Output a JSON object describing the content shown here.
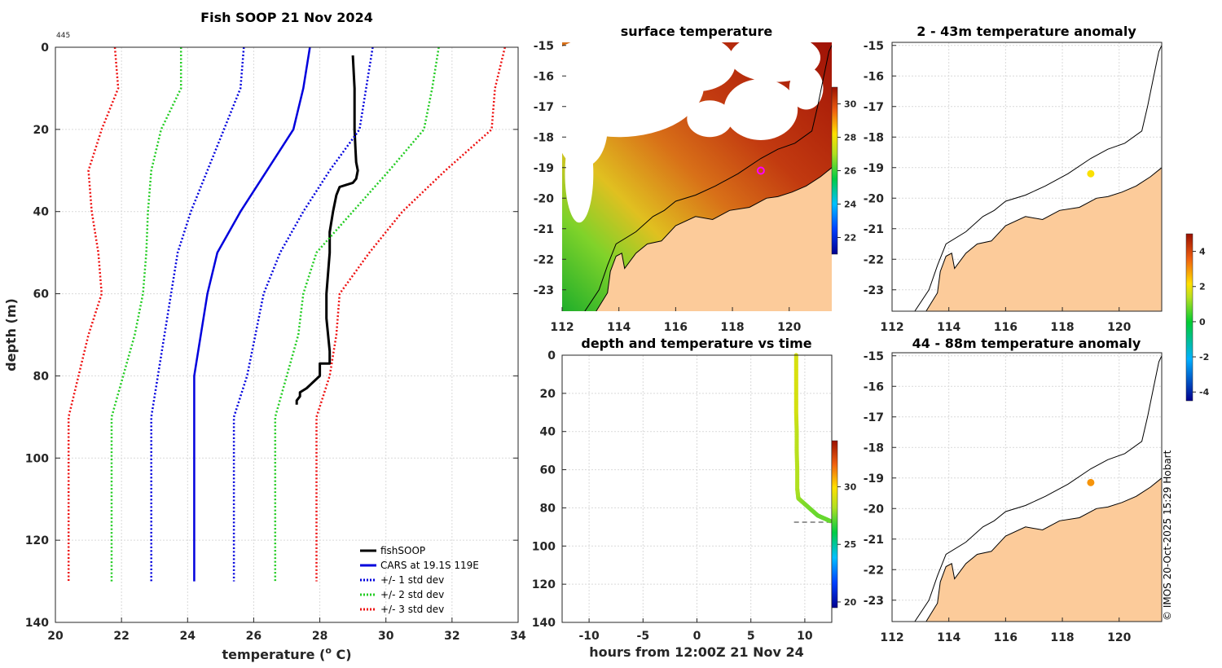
{
  "chart_data": [
    {
      "type": "line",
      "id": "profile",
      "title": "Fish SOOP 21 Nov 2024",
      "corner_label": "445",
      "xlabel": "temperature (",
      "xlabel_sup": "o",
      "xlabel_end": " C)",
      "ylabel": "depth (m)",
      "xlim": [
        20,
        34
      ],
      "ylim": [
        0,
        140
      ],
      "xticks": [
        20,
        22,
        24,
        26,
        28,
        30,
        32,
        34
      ],
      "yticks": [
        0,
        20,
        40,
        60,
        80,
        100,
        120,
        140
      ],
      "legend": [
        "fishSOOP",
        "CARS at 19.1S 119E",
        "+/- 1 std dev",
        "+/- 2 std dev",
        "+/- 3 std dev"
      ],
      "series": [
        {
          "name": "fishSOOP",
          "color": "#000000",
          "style": "solid",
          "x": [
            29.0,
            29.05,
            29.05,
            29.08,
            29.1,
            29.15,
            29.1,
            29.0,
            28.8,
            28.6,
            28.5,
            28.4,
            28.3,
            28.3,
            28.25,
            28.2,
            28.2,
            28.25,
            28.3,
            28.3,
            28.0,
            28.0,
            27.6,
            27.4,
            27.4,
            27.3,
            27.3
          ],
          "y": [
            2,
            10,
            20,
            25,
            28,
            30,
            32,
            33,
            33.5,
            34,
            36,
            40,
            45,
            50,
            55,
            60,
            66,
            70,
            74,
            77,
            77,
            80,
            83,
            84,
            85,
            86,
            87
          ]
        },
        {
          "name": "CARS at 19.1S 119E",
          "color": "#0000dd",
          "style": "solid",
          "x": [
            27.7,
            27.5,
            27.2,
            26.4,
            25.6,
            24.9,
            24.6,
            24.4,
            24.2,
            24.2,
            24.2
          ],
          "y": [
            0,
            10,
            20,
            30,
            40,
            50,
            60,
            70,
            80,
            90,
            130
          ]
        },
        {
          "name": "+1 std dev",
          "color": "#0000dd",
          "style": "dotted",
          "x": [
            29.6,
            29.4,
            29.2,
            28.3,
            27.5,
            26.8,
            26.3,
            26.05,
            25.8,
            25.4,
            25.4
          ],
          "y": [
            0,
            10,
            20,
            30,
            40,
            50,
            60,
            70,
            80,
            90,
            130
          ]
        },
        {
          "name": "-1 std dev",
          "color": "#0000dd",
          "style": "dotted",
          "x": [
            25.7,
            25.6,
            25.1,
            24.6,
            24.1,
            23.7,
            23.5,
            23.3,
            23.1,
            22.9,
            22.9
          ],
          "y": [
            0,
            10,
            20,
            30,
            40,
            50,
            60,
            70,
            80,
            90,
            130
          ]
        },
        {
          "name": "+2 std dev",
          "color": "#22cc22",
          "style": "dotted",
          "x": [
            31.6,
            31.4,
            31.15,
            30.1,
            29.0,
            27.9,
            27.5,
            27.35,
            27.0,
            26.65,
            26.65
          ],
          "y": [
            0,
            10,
            20,
            30,
            40,
            50,
            60,
            70,
            80,
            90,
            130
          ]
        },
        {
          "name": "-2 std dev",
          "color": "#22cc22",
          "style": "dotted",
          "x": [
            23.8,
            23.8,
            23.2,
            22.9,
            22.8,
            22.75,
            22.65,
            22.4,
            22.05,
            21.7,
            21.7
          ],
          "y": [
            0,
            10,
            20,
            30,
            40,
            50,
            60,
            70,
            80,
            90,
            130
          ]
        },
        {
          "name": "+3 std dev",
          "color": "#ee1111",
          "style": "dotted",
          "x": [
            33.6,
            33.3,
            33.2,
            31.8,
            30.5,
            29.5,
            28.6,
            28.5,
            28.3,
            27.9,
            27.9
          ],
          "y": [
            0,
            10,
            20,
            30,
            40,
            50,
            60,
            70,
            80,
            90,
            130
          ]
        },
        {
          "name": "-3 std dev",
          "color": "#ee1111",
          "style": "dotted",
          "x": [
            21.8,
            21.9,
            21.4,
            21.0,
            21.1,
            21.3,
            21.4,
            21.0,
            20.7,
            20.4,
            20.4
          ],
          "y": [
            0,
            10,
            20,
            30,
            40,
            50,
            60,
            70,
            80,
            90,
            130
          ]
        }
      ]
    },
    {
      "type": "heatmap",
      "id": "sst",
      "title": "surface temperature",
      "xlim": [
        112,
        121.5
      ],
      "ylim": [
        -23.7,
        -14.9
      ],
      "xticks": [
        112,
        114,
        116,
        118,
        120
      ],
      "yticks": [
        -15,
        -16,
        -17,
        -18,
        -19,
        -20,
        -21,
        -22,
        -23
      ],
      "colorbar_ticks": [
        22,
        24,
        26,
        28,
        30
      ],
      "colorbar_range": [
        21,
        31
      ],
      "marker": {
        "lon": 119.0,
        "lat": -19.1
      }
    },
    {
      "type": "scatter",
      "id": "time",
      "title": "depth and temperature vs time",
      "xlabel": "hours from 12:00Z 21 Nov 24",
      "xlim": [
        -12.5,
        12.5
      ],
      "ylim": [
        0,
        140
      ],
      "xticks": [
        -10,
        -5,
        0,
        5,
        10
      ],
      "yticks": [
        0,
        20,
        40,
        60,
        80,
        100,
        120,
        140
      ],
      "colorbar_ticks": [
        20,
        25,
        30
      ],
      "colorbar_range": [
        19.5,
        34
      ],
      "max_depth_line": 87.5,
      "t": [
        9.2,
        9.2,
        9.2,
        9.2,
        9.25,
        9.25,
        9.3,
        9.3,
        9.4,
        9.6,
        10.0,
        10.4,
        10.8,
        11.2,
        11.6,
        12.0,
        12.4
      ],
      "depth": [
        0,
        10,
        20,
        30,
        40,
        50,
        60,
        70,
        75,
        76,
        78,
        80,
        82,
        84,
        85,
        86,
        87
      ],
      "temp": [
        29.0,
        29.1,
        29.0,
        29.0,
        28.5,
        28.4,
        28.3,
        28.2,
        28.0,
        27.8,
        27.6,
        27.5,
        27.4,
        27.3,
        27.3,
        27.3,
        27.3
      ]
    },
    {
      "type": "scatter",
      "id": "anom1",
      "title": "2 - 43m temperature anomaly",
      "xlim": [
        112,
        121.5
      ],
      "ylim": [
        -23.7,
        -14.9
      ],
      "xticks": [
        112,
        114,
        116,
        118,
        120
      ],
      "yticks": [
        -15,
        -16,
        -17,
        -18,
        -19,
        -20,
        -21,
        -22,
        -23
      ],
      "point": {
        "lon": 119.0,
        "lat": -19.2,
        "anomaly": 2.1
      }
    },
    {
      "type": "scatter",
      "id": "anom2",
      "title": "44 - 88m temperature anomaly",
      "xlim": [
        112,
        121.5
      ],
      "ylim": [
        -23.7,
        -14.9
      ],
      "xticks": [
        112,
        114,
        116,
        118,
        120
      ],
      "yticks": [
        -15,
        -16,
        -17,
        -18,
        -19,
        -20,
        -21,
        -22,
        -23
      ],
      "point": {
        "lon": 119.0,
        "lat": -19.15,
        "anomaly": 3.0
      }
    }
  ],
  "anomaly_colorbar": {
    "ticks": [
      4,
      2,
      0,
      -2,
      -4
    ],
    "range": [
      -4.5,
      5
    ]
  },
  "credit": "© IMOS 20-Oct-2025 15:29 Hobart",
  "colors": {
    "land": "#fccb9a",
    "grid": "#d9d9d9",
    "marker": "#ff00ff"
  }
}
